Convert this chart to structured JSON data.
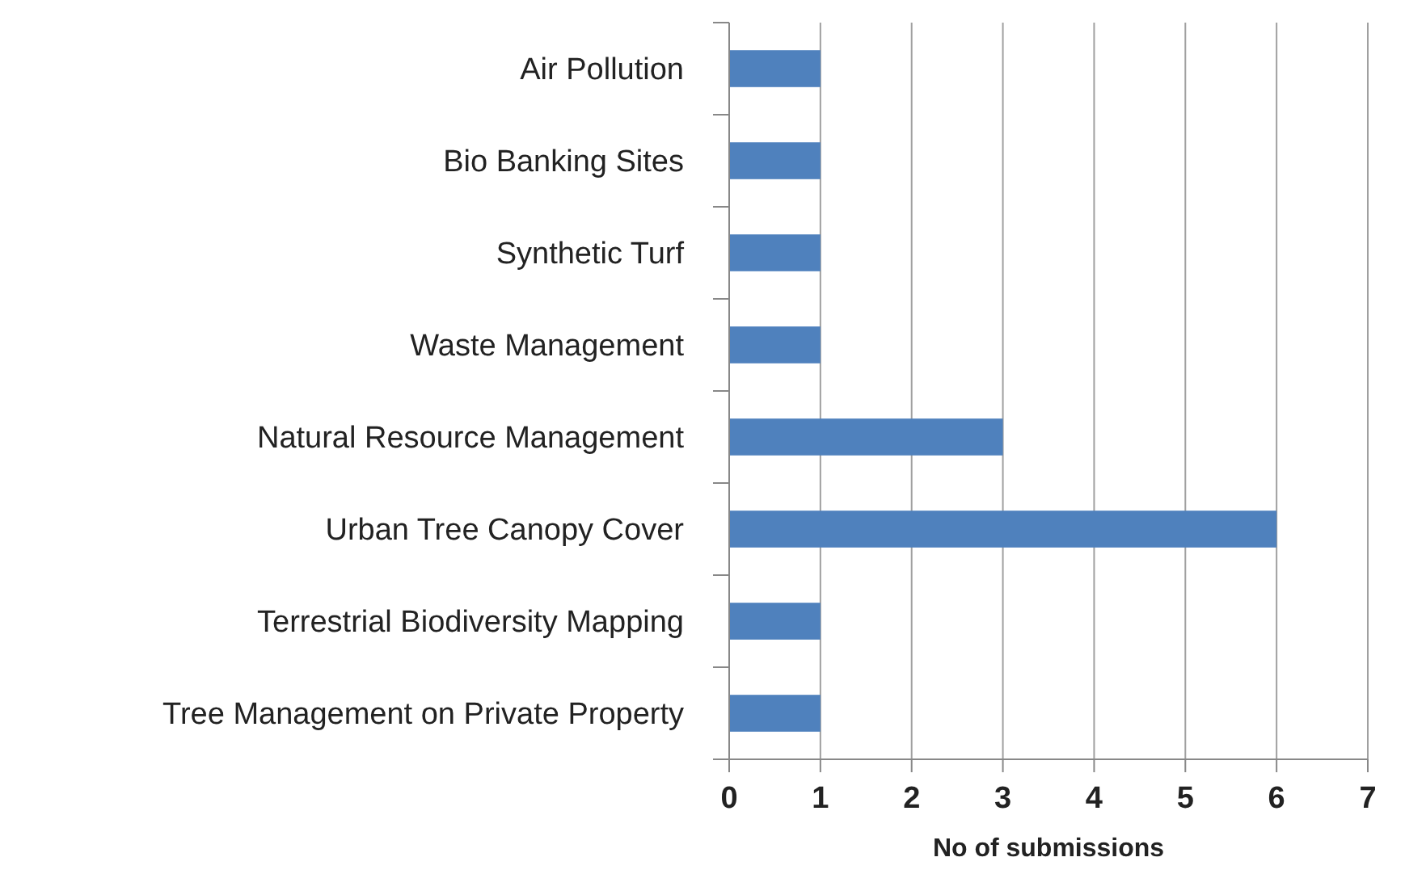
{
  "chart_data": {
    "type": "bar",
    "orientation": "horizontal",
    "categories": [
      "Air Pollution",
      "Bio Banking Sites",
      "Synthetic Turf",
      "Waste Management",
      "Natural Resource Management",
      "Urban Tree Canopy Cover",
      "Terrestrial Biodiversity Mapping",
      "Tree Management on Private Property"
    ],
    "values": [
      1,
      1,
      1,
      1,
      3,
      6,
      1,
      1
    ],
    "color": "#4f81bd",
    "xlim": [
      0,
      7
    ],
    "xticks": [
      0,
      1,
      2,
      3,
      4,
      5,
      6,
      7
    ],
    "xlabel": "No of submissions",
    "grid": "x"
  }
}
